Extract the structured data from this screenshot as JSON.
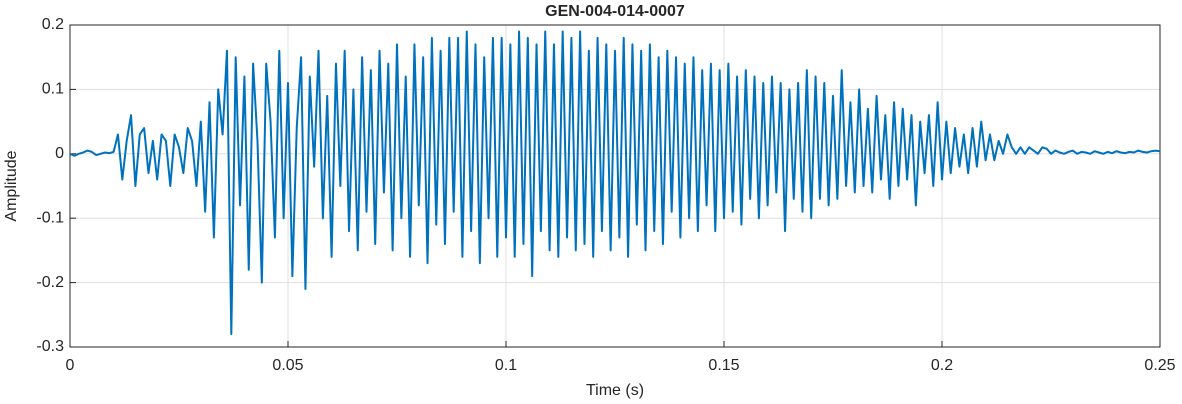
{
  "chart_data": {
    "type": "line",
    "title": "GEN-004-014-0007",
    "x_label": "Time (s)",
    "y_label": "Amplitude",
    "x": [
      0,
      0.001,
      0.002,
      0.003,
      0.004,
      0.005,
      0.006,
      0.007,
      0.008,
      0.009,
      0.01,
      0.011,
      0.012,
      0.013,
      0.014,
      0.015,
      0.016,
      0.017,
      0.018,
      0.019,
      0.02,
      0.021,
      0.022,
      0.023,
      0.024,
      0.025,
      0.026,
      0.027,
      0.028,
      0.029,
      0.03,
      0.031,
      0.032,
      0.033,
      0.034,
      0.035,
      0.036,
      0.037,
      0.038,
      0.039,
      0.04,
      0.041,
      0.042,
      0.043,
      0.044,
      0.045,
      0.046,
      0.047,
      0.048,
      0.049,
      0.05,
      0.051,
      0.052,
      0.053,
      0.054,
      0.055,
      0.056,
      0.057,
      0.058,
      0.059,
      0.06,
      0.061,
      0.062,
      0.063,
      0.064,
      0.065,
      0.066,
      0.067,
      0.068,
      0.069,
      0.07,
      0.071,
      0.072,
      0.073,
      0.074,
      0.075,
      0.076,
      0.077,
      0.078,
      0.079,
      0.08,
      0.081,
      0.082,
      0.083,
      0.084,
      0.085,
      0.086,
      0.087,
      0.088,
      0.089,
      0.09,
      0.091,
      0.092,
      0.093,
      0.094,
      0.095,
      0.096,
      0.097,
      0.098,
      0.099,
      0.1,
      0.101,
      0.102,
      0.103,
      0.104,
      0.105,
      0.106,
      0.107,
      0.108,
      0.109,
      0.11,
      0.111,
      0.112,
      0.113,
      0.114,
      0.115,
      0.116,
      0.117,
      0.118,
      0.119,
      0.12,
      0.121,
      0.122,
      0.123,
      0.124,
      0.125,
      0.126,
      0.127,
      0.128,
      0.129,
      0.13,
      0.131,
      0.132,
      0.133,
      0.134,
      0.135,
      0.136,
      0.137,
      0.138,
      0.139,
      0.14,
      0.141,
      0.142,
      0.143,
      0.144,
      0.145,
      0.146,
      0.147,
      0.148,
      0.149,
      0.15,
      0.151,
      0.152,
      0.153,
      0.154,
      0.155,
      0.156,
      0.157,
      0.158,
      0.159,
      0.16,
      0.161,
      0.162,
      0.163,
      0.164,
      0.165,
      0.166,
      0.167,
      0.168,
      0.169,
      0.17,
      0.171,
      0.172,
      0.173,
      0.174,
      0.175,
      0.176,
      0.177,
      0.178,
      0.179,
      0.18,
      0.181,
      0.182,
      0.183,
      0.184,
      0.185,
      0.186,
      0.187,
      0.188,
      0.189,
      0.19,
      0.191,
      0.192,
      0.193,
      0.194,
      0.195,
      0.196,
      0.197,
      0.198,
      0.199,
      0.2,
      0.201,
      0.202,
      0.203,
      0.204,
      0.205,
      0.206,
      0.207,
      0.208,
      0.209,
      0.21,
      0.211,
      0.212,
      0.213,
      0.214,
      0.215,
      0.216,
      0.217,
      0.218,
      0.219,
      0.22,
      0.221,
      0.222,
      0.223,
      0.224,
      0.225,
      0.226,
      0.227,
      0.228,
      0.229,
      0.23,
      0.231,
      0.232,
      0.233,
      0.234,
      0.235,
      0.236,
      0.237,
      0.238,
      0.239,
      0.24,
      0.241,
      0.242,
      0.243,
      0.244,
      0.245,
      0.246,
      0.247,
      0.248,
      0.249,
      0.25
    ],
    "series": [
      {
        "color": "#0072bd",
        "values": [
          0,
          -0.003,
          0,
          0.002,
          0.005,
          0.003,
          -0.002,
          0,
          0.002,
          0.001,
          0.003,
          0.03,
          -0.04,
          0.02,
          0.06,
          -0.05,
          0.03,
          0.04,
          -0.03,
          0.02,
          -0.04,
          0.03,
          0.02,
          -0.05,
          0.03,
          0.01,
          -0.03,
          0.04,
          0.02,
          -0.05,
          0.05,
          -0.09,
          0.08,
          -0.13,
          0.1,
          0.03,
          0.16,
          -0.28,
          0.15,
          -0.08,
          0.12,
          -0.18,
          0.14,
          0.02,
          -0.2,
          0.14,
          0.05,
          -0.13,
          0.16,
          -0.1,
          0.11,
          -0.19,
          0.04,
          0.15,
          -0.21,
          0.12,
          -0.02,
          0.16,
          -0.1,
          0.09,
          -0.16,
          0.14,
          -0.05,
          0.16,
          -0.12,
          0.1,
          -0.15,
          0.15,
          -0.09,
          0.13,
          -0.14,
          0.16,
          -0.06,
          0.14,
          -0.15,
          0.17,
          -0.1,
          0.12,
          -0.16,
          0.17,
          -0.08,
          0.15,
          -0.17,
          0.18,
          -0.11,
          0.16,
          -0.14,
          0.18,
          -0.09,
          0.18,
          -0.16,
          0.19,
          -0.12,
          0.17,
          -0.17,
          0.15,
          -0.1,
          0.18,
          -0.16,
          0.18,
          -0.13,
          0.17,
          -0.16,
          0.19,
          -0.14,
          0.18,
          -0.19,
          0.17,
          -0.12,
          0.19,
          -0.15,
          0.17,
          -0.16,
          0.19,
          -0.13,
          0.18,
          -0.15,
          0.19,
          -0.14,
          0.16,
          -0.16,
          0.18,
          -0.12,
          0.17,
          -0.15,
          0.16,
          -0.13,
          0.18,
          -0.16,
          0.17,
          -0.11,
          0.16,
          -0.15,
          0.17,
          -0.12,
          0.15,
          -0.14,
          0.16,
          -0.09,
          0.15,
          -0.13,
          0.14,
          -0.1,
          0.15,
          -0.12,
          0.13,
          -0.08,
          0.14,
          -0.12,
          0.13,
          -0.1,
          0.14,
          -0.09,
          0.12,
          -0.11,
          0.13,
          -0.07,
          0.12,
          -0.1,
          0.11,
          -0.08,
          0.12,
          -0.06,
          0.11,
          -0.12,
          0.1,
          -0.07,
          0.11,
          -0.09,
          0.13,
          -0.1,
          0.12,
          -0.07,
          0.11,
          -0.08,
          0.09,
          -0.07,
          0.13,
          -0.05,
          0.08,
          -0.06,
          0.1,
          -0.05,
          0.07,
          -0.06,
          0.09,
          -0.04,
          0.06,
          -0.07,
          0.08,
          -0.05,
          0.07,
          -0.04,
          0.06,
          -0.08,
          0.05,
          -0.03,
          0.06,
          -0.05,
          0.08,
          -0.04,
          0.05,
          -0.03,
          0.04,
          -0.02,
          0.03,
          -0.03,
          0.04,
          -0.02,
          0.05,
          -0.01,
          0.03,
          -0.01,
          0.02,
          0,
          0.03,
          0.01,
          0,
          0.01,
          0,
          0.01,
          0.005,
          0,
          0.01,
          0.008,
          0,
          0.005,
          0.002,
          0,
          0.003,
          0.005,
          0,
          0.003,
          0.002,
          0,
          0.004,
          0.002,
          0,
          0.003,
          0.001,
          0.004,
          0.002,
          0.001,
          0.003,
          0.002,
          0.005,
          0.003,
          0.002,
          0.004,
          0.005,
          0.004
        ]
      }
    ],
    "xlim": [
      0,
      0.25
    ],
    "xticks": [
      0,
      0.05,
      0.1,
      0.15,
      0.2,
      0.25
    ],
    "ylim": [
      -0.3,
      0.2
    ],
    "yticks": [
      -0.3,
      -0.2,
      -0.1,
      0,
      0.1,
      0.2
    ],
    "grid": true
  }
}
